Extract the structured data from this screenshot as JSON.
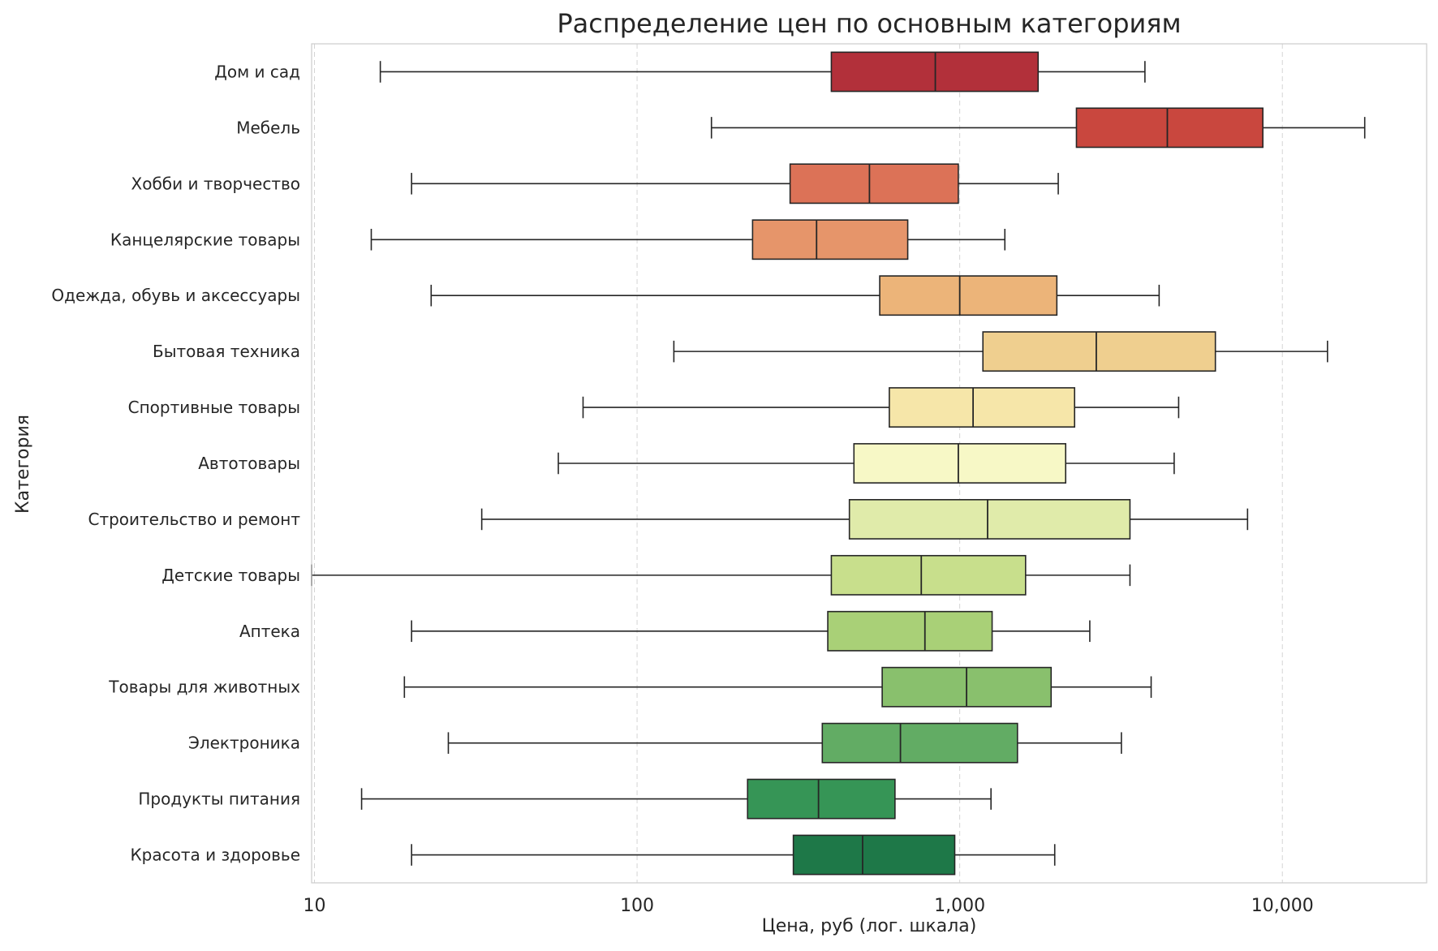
{
  "chart_data": {
    "type": "boxplot",
    "orientation": "horizontal",
    "title": "Распределение цен по основным категориям",
    "xlabel": "Цена, руб (лог. шкала)",
    "ylabel": "Категория",
    "xscale": "log",
    "xlim": [
      9.8,
      28000
    ],
    "xticks": [
      10,
      100,
      1000,
      10000
    ],
    "xtick_labels": [
      "10",
      "100",
      "1,000",
      "10,000"
    ],
    "grid": "x, dashed",
    "categories": [
      "Дом и сад",
      "Мебель",
      "Хобби и творчество",
      "Канцелярские товары",
      "Одежда, обувь и аксессуары",
      "Бытовая техника",
      "Спортивные товары",
      "Автотовары",
      "Строительство и ремонт",
      "Детские товары",
      "Аптека",
      "Товары для животных",
      "Электроника",
      "Продукты питания",
      "Красота и здоровье"
    ],
    "boxes": [
      {
        "whislo": 16,
        "q1": 400,
        "med": 840,
        "q3": 1750,
        "whishi": 3750
      },
      {
        "whislo": 170,
        "q1": 2300,
        "med": 4400,
        "q3": 8700,
        "whishi": 18000
      },
      {
        "whislo": 20,
        "q1": 298,
        "med": 525,
        "q3": 990,
        "whishi": 2020
      },
      {
        "whislo": 15,
        "q1": 228,
        "med": 360,
        "q3": 690,
        "whishi": 1380
      },
      {
        "whislo": 23,
        "q1": 565,
        "med": 1000,
        "q3": 2000,
        "whishi": 4150
      },
      {
        "whislo": 130,
        "q1": 1180,
        "med": 2650,
        "q3": 6200,
        "whishi": 13800
      },
      {
        "whislo": 68,
        "q1": 605,
        "med": 1100,
        "q3": 2270,
        "whishi": 4770
      },
      {
        "whislo": 57,
        "q1": 470,
        "med": 990,
        "q3": 2130,
        "whishi": 4620
      },
      {
        "whislo": 33,
        "q1": 455,
        "med": 1220,
        "q3": 3370,
        "whishi": 7800
      },
      {
        "whislo": 9.8,
        "q1": 400,
        "med": 760,
        "q3": 1600,
        "whishi": 3370
      },
      {
        "whislo": 20,
        "q1": 390,
        "med": 780,
        "q3": 1260,
        "whishi": 2530
      },
      {
        "whislo": 19,
        "q1": 575,
        "med": 1050,
        "q3": 1920,
        "whishi": 3920
      },
      {
        "whislo": 26,
        "q1": 375,
        "med": 655,
        "q3": 1510,
        "whishi": 3170
      },
      {
        "whislo": 14,
        "q1": 220,
        "med": 365,
        "q3": 630,
        "whishi": 1250
      },
      {
        "whislo": 20,
        "q1": 305,
        "med": 500,
        "q3": 965,
        "whishi": 1970
      }
    ],
    "colors": [
      "#b2303a",
      "#c9473e",
      "#dc7257",
      "#e6956a",
      "#ecb479",
      "#efcf8f",
      "#f6e6a9",
      "#f7f8c6",
      "#e0ebaa",
      "#c8df8c",
      "#a9d077",
      "#89c06d",
      "#62ac64",
      "#369556",
      "#1e7848"
    ]
  }
}
